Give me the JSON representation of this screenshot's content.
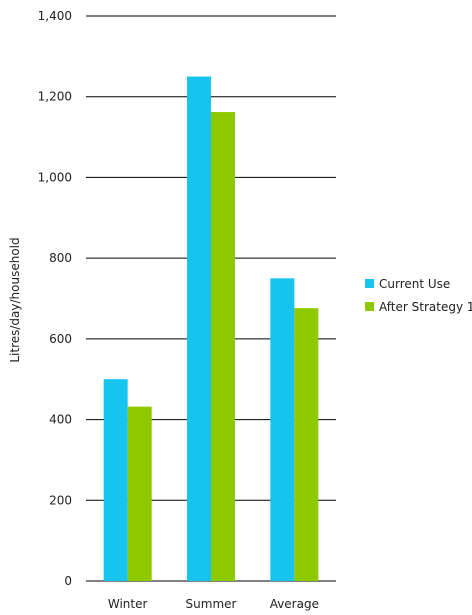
{
  "chart_data": {
    "type": "bar",
    "categories": [
      "Winter",
      "Summer",
      "Average"
    ],
    "series": [
      {
        "name": "Current Use",
        "values": [
          500,
          1250,
          750
        ],
        "color": "#17c4f0"
      },
      {
        "name": "After Strategy 1",
        "values": [
          432,
          1162,
          676
        ],
        "color": "#8ec900"
      }
    ],
    "ylabel": "Litres/day/household",
    "xlabel": "",
    "ylim": [
      0,
      1400
    ],
    "yticks": [
      0,
      200,
      400,
      600,
      800,
      1000,
      1200,
      1400
    ],
    "ytick_labels": [
      "0",
      "200",
      "400",
      "600",
      "800",
      "1,000",
      "1,200",
      "1,400"
    ],
    "grid": true,
    "legend_position": "right"
  }
}
